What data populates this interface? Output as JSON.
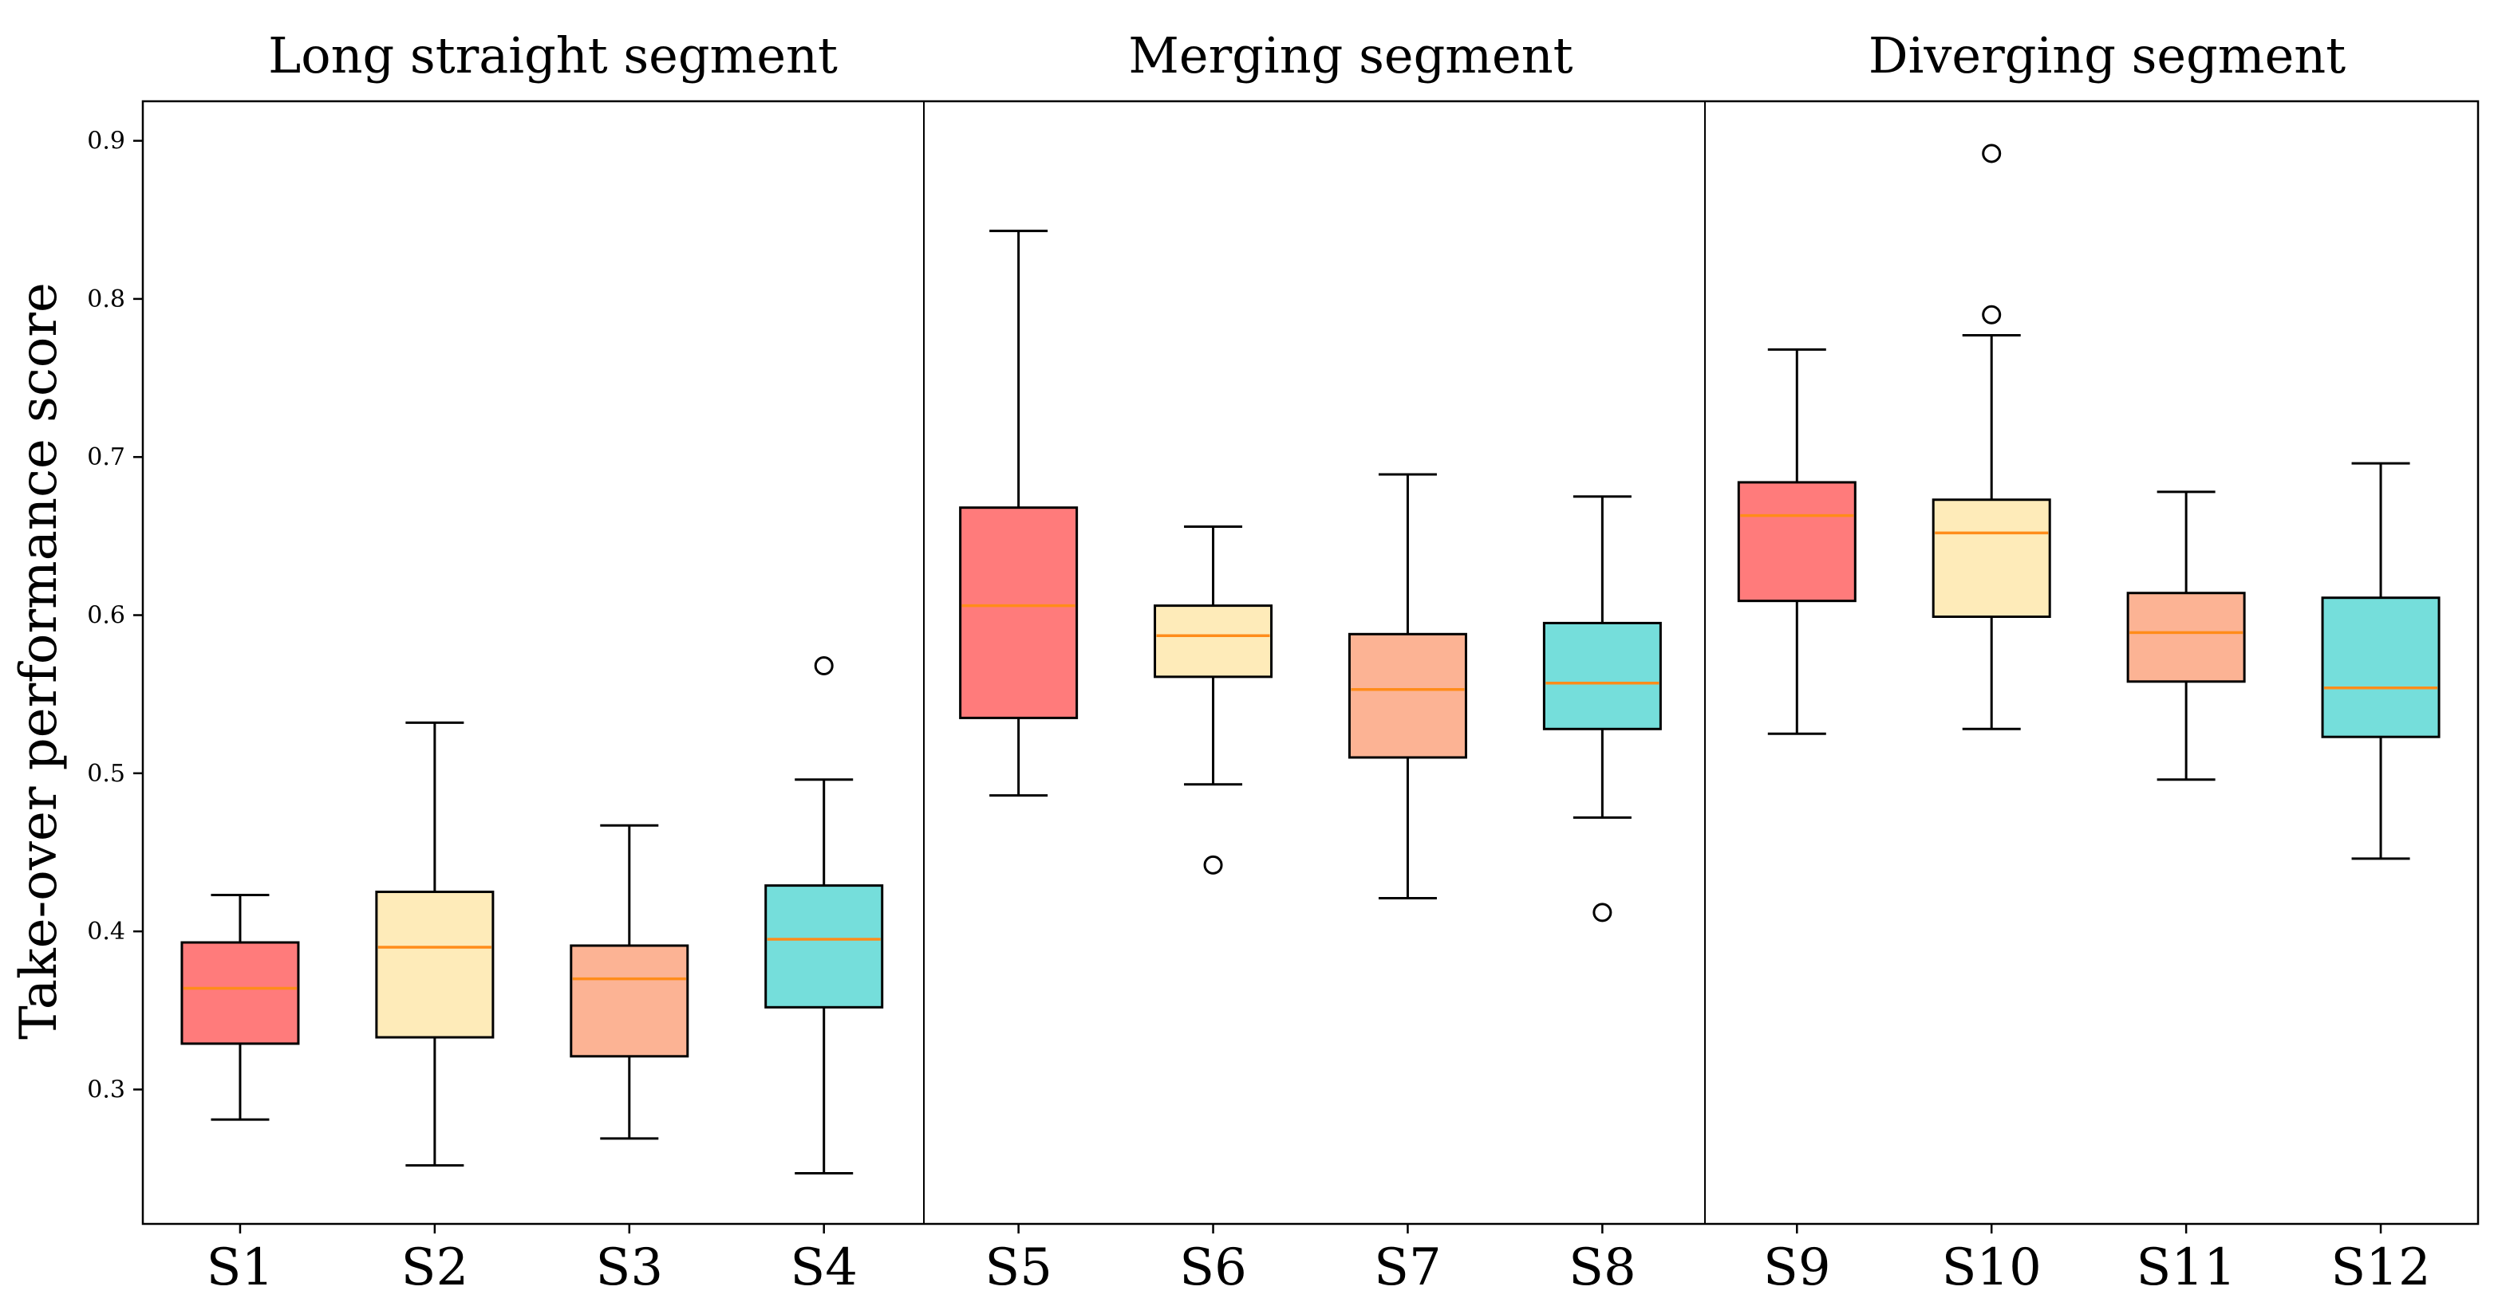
{
  "chart_data": {
    "type": "boxplot",
    "ylabel": "Take-over performance score",
    "ylim": [
      0.215,
      0.925
    ],
    "yticks": [
      0.3,
      0.4,
      0.5,
      0.6,
      0.7,
      0.8,
      0.9
    ],
    "ytick_labels": [
      "0.3",
      "0.4",
      "0.5",
      "0.6",
      "0.7",
      "0.8",
      "0.9"
    ],
    "groups": [
      {
        "title": "Long straight segment",
        "members": [
          "S1",
          "S2",
          "S3",
          "S4"
        ]
      },
      {
        "title": "Merging segment",
        "members": [
          "S5",
          "S6",
          "S7",
          "S8"
        ]
      },
      {
        "title": "Diverging segment",
        "members": [
          "S9",
          "S10",
          "S11",
          "S12"
        ]
      }
    ],
    "colors": {
      "red": "#ff7b7b",
      "yellow": "#feebb9",
      "salmon": "#fcb394",
      "teal": "#75dedb",
      "median": "#ff8c1a",
      "edge": "#000000"
    },
    "boxes": [
      {
        "label": "S1",
        "whislo": 0.281,
        "q1": 0.329,
        "med": 0.364,
        "q3": 0.393,
        "whishi": 0.423,
        "fliers": [],
        "color": "#ff7b7b"
      },
      {
        "label": "S2",
        "whislo": 0.252,
        "q1": 0.333,
        "med": 0.39,
        "q3": 0.425,
        "whishi": 0.532,
        "fliers": [],
        "color": "#feebb9"
      },
      {
        "label": "S3",
        "whislo": 0.269,
        "q1": 0.321,
        "med": 0.37,
        "q3": 0.391,
        "whishi": 0.467,
        "fliers": [],
        "color": "#fcb394"
      },
      {
        "label": "S4",
        "whislo": 0.247,
        "q1": 0.352,
        "med": 0.395,
        "q3": 0.429,
        "whishi": 0.496,
        "fliers": [
          0.568
        ],
        "color": "#75dedb"
      },
      {
        "label": "S5",
        "whislo": 0.486,
        "q1": 0.535,
        "med": 0.606,
        "q3": 0.668,
        "whishi": 0.843,
        "fliers": [],
        "color": "#ff7b7b"
      },
      {
        "label": "S6",
        "whislo": 0.493,
        "q1": 0.561,
        "med": 0.587,
        "q3": 0.606,
        "whishi": 0.656,
        "fliers": [
          0.442
        ],
        "color": "#feebb9"
      },
      {
        "label": "S7",
        "whislo": 0.421,
        "q1": 0.51,
        "med": 0.553,
        "q3": 0.588,
        "whishi": 0.689,
        "fliers": [],
        "color": "#fcb394"
      },
      {
        "label": "S8",
        "whislo": 0.472,
        "q1": 0.528,
        "med": 0.557,
        "q3": 0.595,
        "whishi": 0.675,
        "fliers": [
          0.412
        ],
        "color": "#75dedb"
      },
      {
        "label": "S9",
        "whislo": 0.525,
        "q1": 0.609,
        "med": 0.663,
        "q3": 0.684,
        "whishi": 0.768,
        "fliers": [],
        "color": "#ff7b7b"
      },
      {
        "label": "S10",
        "whislo": 0.528,
        "q1": 0.599,
        "med": 0.652,
        "q3": 0.673,
        "whishi": 0.777,
        "fliers": [
          0.79,
          0.892
        ],
        "color": "#feebb9"
      },
      {
        "label": "S11",
        "whislo": 0.496,
        "q1": 0.558,
        "med": 0.589,
        "q3": 0.614,
        "whishi": 0.678,
        "fliers": [],
        "color": "#fcb394"
      },
      {
        "label": "S12",
        "whislo": 0.446,
        "q1": 0.523,
        "med": 0.554,
        "q3": 0.611,
        "whishi": 0.696,
        "fliers": [],
        "color": "#75dedb"
      }
    ]
  }
}
